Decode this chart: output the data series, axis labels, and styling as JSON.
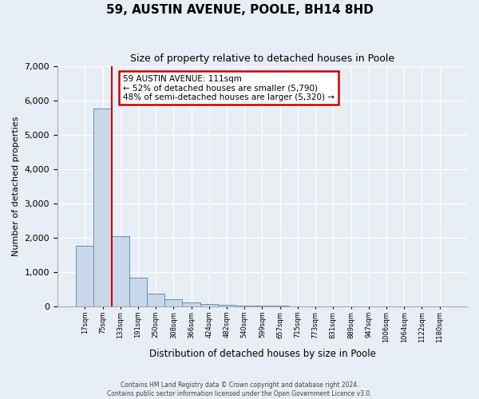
{
  "title": "59, AUSTIN AVENUE, POOLE, BH14 8HD",
  "subtitle": "Size of property relative to detached houses in Poole",
  "xlabel": "Distribution of detached houses by size in Poole",
  "ylabel": "Number of detached properties",
  "bin_labels": [
    "17sqm",
    "75sqm",
    "133sqm",
    "191sqm",
    "250sqm",
    "308sqm",
    "366sqm",
    "424sqm",
    "482sqm",
    "540sqm",
    "599sqm",
    "657sqm",
    "715sqm",
    "773sqm",
    "831sqm",
    "889sqm",
    "947sqm",
    "1006sqm",
    "1064sqm",
    "1122sqm",
    "1180sqm"
  ],
  "bar_heights": [
    1770,
    5760,
    2050,
    830,
    370,
    220,
    115,
    75,
    50,
    30,
    20,
    15,
    10,
    0,
    0,
    0,
    0,
    0,
    0,
    0,
    0
  ],
  "bar_color": "#c8d8e8",
  "bar_edge_color": "#6090b8",
  "red_line_color": "#cc0000",
  "red_line_x": 1.5,
  "annotation_text": "59 AUSTIN AVENUE: 111sqm\n← 52% of detached houses are smaller (5,790)\n48% of semi-detached houses are larger (5,320) →",
  "annotation_box_color": "#ffffff",
  "annotation_box_edge_color": "#cc0000",
  "ylim": [
    0,
    7000
  ],
  "yticks": [
    0,
    1000,
    2000,
    3000,
    4000,
    5000,
    6000,
    7000
  ],
  "footer_line1": "Contains HM Land Registry data © Crown copyright and database right 2024.",
  "footer_line2": "Contains public sector information licensed under the Open Government Licence v3.0.",
  "background_color": "#e8eef5",
  "plot_bg_color": "#e8eef5"
}
